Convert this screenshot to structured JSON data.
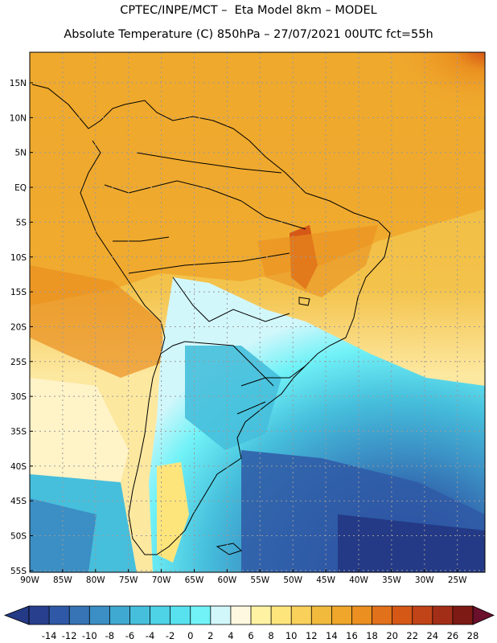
{
  "title": {
    "line1": "CPTEC/INPE/MCT –  Eta Model 8km – MODEL",
    "line2": "Absolute Temperature (C) 850hPa – 27/07/2021 00UTC fct=55h"
  },
  "lat_labels": [
    "15N",
    "10N",
    "5N",
    "EQ",
    "5S",
    "10S",
    "15S",
    "20S",
    "25S",
    "30S",
    "35S",
    "40S",
    "45S",
    "50S",
    "55S"
  ],
  "lon_labels": [
    "90W",
    "85W",
    "80W",
    "75W",
    "70W",
    "65W",
    "60W",
    "55W",
    "50W",
    "45W",
    "40W",
    "35W",
    "30W",
    "25W"
  ],
  "colorbar": {
    "ticks": [
      "-14",
      "-12",
      "-10",
      "-8",
      "-6",
      "-4",
      "-2",
      "0",
      "2",
      "4",
      "6",
      "8",
      "10",
      "12",
      "14",
      "16",
      "18",
      "20",
      "22",
      "24",
      "26",
      "28"
    ],
    "colors": [
      "#283f8e",
      "#2f59a6",
      "#3674b5",
      "#3b8fc4",
      "#40a9d1",
      "#46bfdc",
      "#4dd2e6",
      "#58e2f0",
      "#70f2f7",
      "#d2f7fb",
      "#fff8e0",
      "#fff3a3",
      "#fde57c",
      "#f8d05a",
      "#f1ba3d",
      "#efa62a",
      "#ea8f20",
      "#e1711a",
      "#d65816",
      "#c14418",
      "#a32e18",
      "#7e1a14"
    ],
    "low_arrow": "#243a86",
    "high_arrow": "#6a0f2c"
  }
}
